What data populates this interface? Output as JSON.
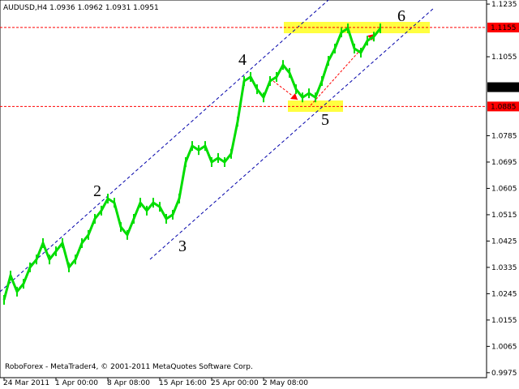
{
  "chart_data": {
    "type": "line",
    "title": "AUDUSD,H4  1.0936 1.0962 1.0931 1.0951",
    "footer": "RoboForex - MetaTrader4, © 2001-2011 MetaQuotes Software Corp.",
    "categories": [
      "24 Mar 2011",
      null,
      null,
      null,
      null,
      null,
      null,
      null,
      "1 Apr 00:00",
      null,
      null,
      null,
      null,
      null,
      null,
      null,
      "8 Apr 08:00",
      null,
      null,
      null,
      null,
      null,
      null,
      null,
      "15 Apr 16:00",
      null,
      null,
      null,
      null,
      null,
      null,
      null,
      "25 Apr 00:00",
      null,
      null,
      null,
      null,
      null,
      null,
      null,
      "2 May 08:00",
      null,
      null,
      null,
      null,
      null,
      null,
      null,
      null,
      null,
      null,
      null,
      null,
      null,
      null,
      null,
      null,
      null,
      null
    ],
    "values": [
      1.0224,
      1.0307,
      1.0252,
      1.0279,
      1.0335,
      1.0362,
      1.0418,
      1.0362,
      1.039,
      1.0418,
      1.0335,
      1.0362,
      1.0418,
      1.0446,
      1.0501,
      1.0529,
      1.057,
      1.0556,
      1.0473,
      1.0446,
      1.0501,
      1.0556,
      1.0529,
      1.0556,
      1.0542,
      1.0501,
      1.0515,
      1.057,
      1.0695,
      1.075,
      1.0736,
      1.075,
      1.0695,
      1.0709,
      1.0695,
      1.0723,
      1.0833,
      1.0972,
      1.0986,
      1.0944,
      1.0916,
      1.0972,
      1.0986,
      1.1027,
      1.1,
      1.0944,
      1.0916,
      1.093,
      1.0916,
      1.0972,
      1.1041,
      1.1083,
      1.1138,
      1.1152,
      1.1083,
      1.1069,
      1.111,
      1.1124,
      1.1152
    ],
    "color": "#00dd00",
    "ylim": [
      0.9958,
      1.1249
    ],
    "yticks": [
      1.1235,
      1.1055,
      1.0785,
      1.0695,
      1.0605,
      1.0515,
      1.0425,
      1.0335,
      1.0245,
      1.0155,
      1.0065,
      0.9975
    ],
    "levels": [
      {
        "value": 1.1155,
        "color": "#ff0000"
      },
      {
        "value": 1.0885,
        "color": "#ff0000"
      }
    ],
    "current_price": {
      "value": 1.0951,
      "color": "#000000"
    },
    "annotations": [
      "2",
      "3",
      "4",
      "5",
      "6"
    ]
  }
}
